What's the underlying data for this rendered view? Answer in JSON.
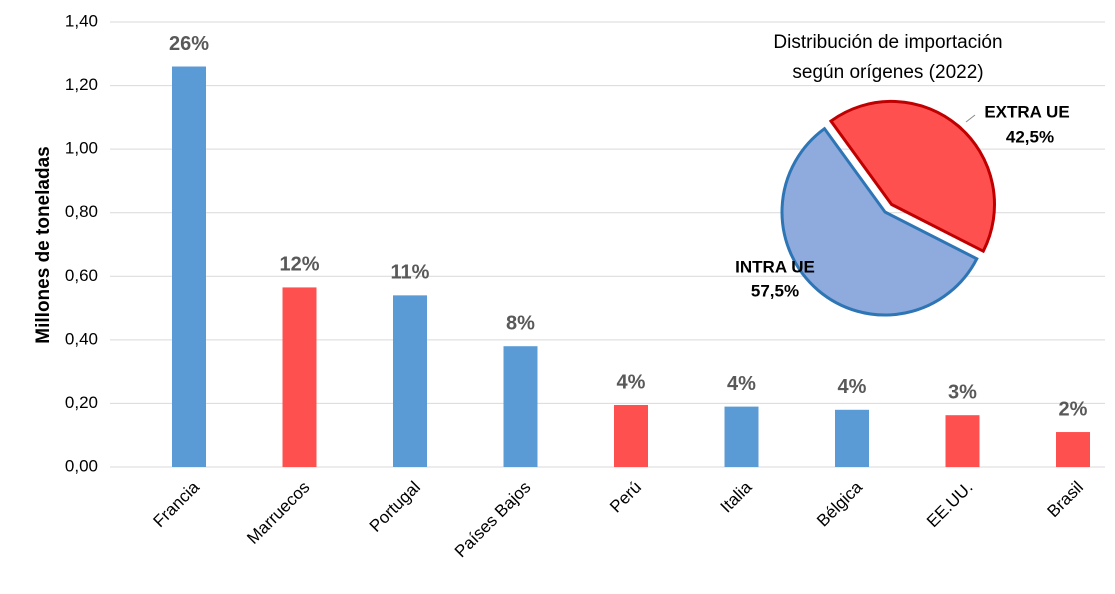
{
  "chart_data": [
    {
      "type": "bar",
      "y_label": "Millones de toneladas",
      "categories": [
        "Francia",
        "Marruecos",
        "Portugal",
        "Países Bajos",
        "Perú",
        "Italia",
        "Bélgica",
        "EE.UU.",
        "Brasil"
      ],
      "values": [
        1.26,
        0.565,
        0.54,
        0.38,
        0.195,
        0.19,
        0.18,
        0.163,
        0.11
      ],
      "labels": [
        "26%",
        "12%",
        "11%",
        "8%",
        "4%",
        "4%",
        "4%",
        "3%",
        "2%"
      ],
      "colors": [
        "#5b9bd5",
        "#ff5050",
        "#5b9bd5",
        "#5b9bd5",
        "#ff5050",
        "#5b9bd5",
        "#5b9bd5",
        "#ff5050",
        "#ff5050"
      ],
      "ylim": [
        0,
        1.4
      ],
      "yticks": [
        {
          "value": 0,
          "label": "0,00"
        },
        {
          "value": 0.2,
          "label": "0,20"
        },
        {
          "value": 0.4,
          "label": "0,40"
        },
        {
          "value": 0.6,
          "label": "0,60"
        },
        {
          "value": 0.8,
          "label": "0,80"
        },
        {
          "value": 1.0,
          "label": "1,00"
        },
        {
          "value": 1.2,
          "label": "1,20"
        },
        {
          "value": 1.4,
          "label": "1,40"
        }
      ],
      "grid": true
    },
    {
      "type": "pie",
      "title": [
        "Distribución de importación",
        "según orígenes (2022)"
      ],
      "categories": [
        "INTRA UE",
        "EXTRA UE"
      ],
      "values": [
        57.5,
        42.5
      ],
      "value_labels": [
        "57,5%",
        "42,5%"
      ],
      "colors": [
        "#8faadc",
        "#ff5050"
      ],
      "edge_colors": [
        "#2e75b6",
        "#c00000"
      ]
    }
  ]
}
